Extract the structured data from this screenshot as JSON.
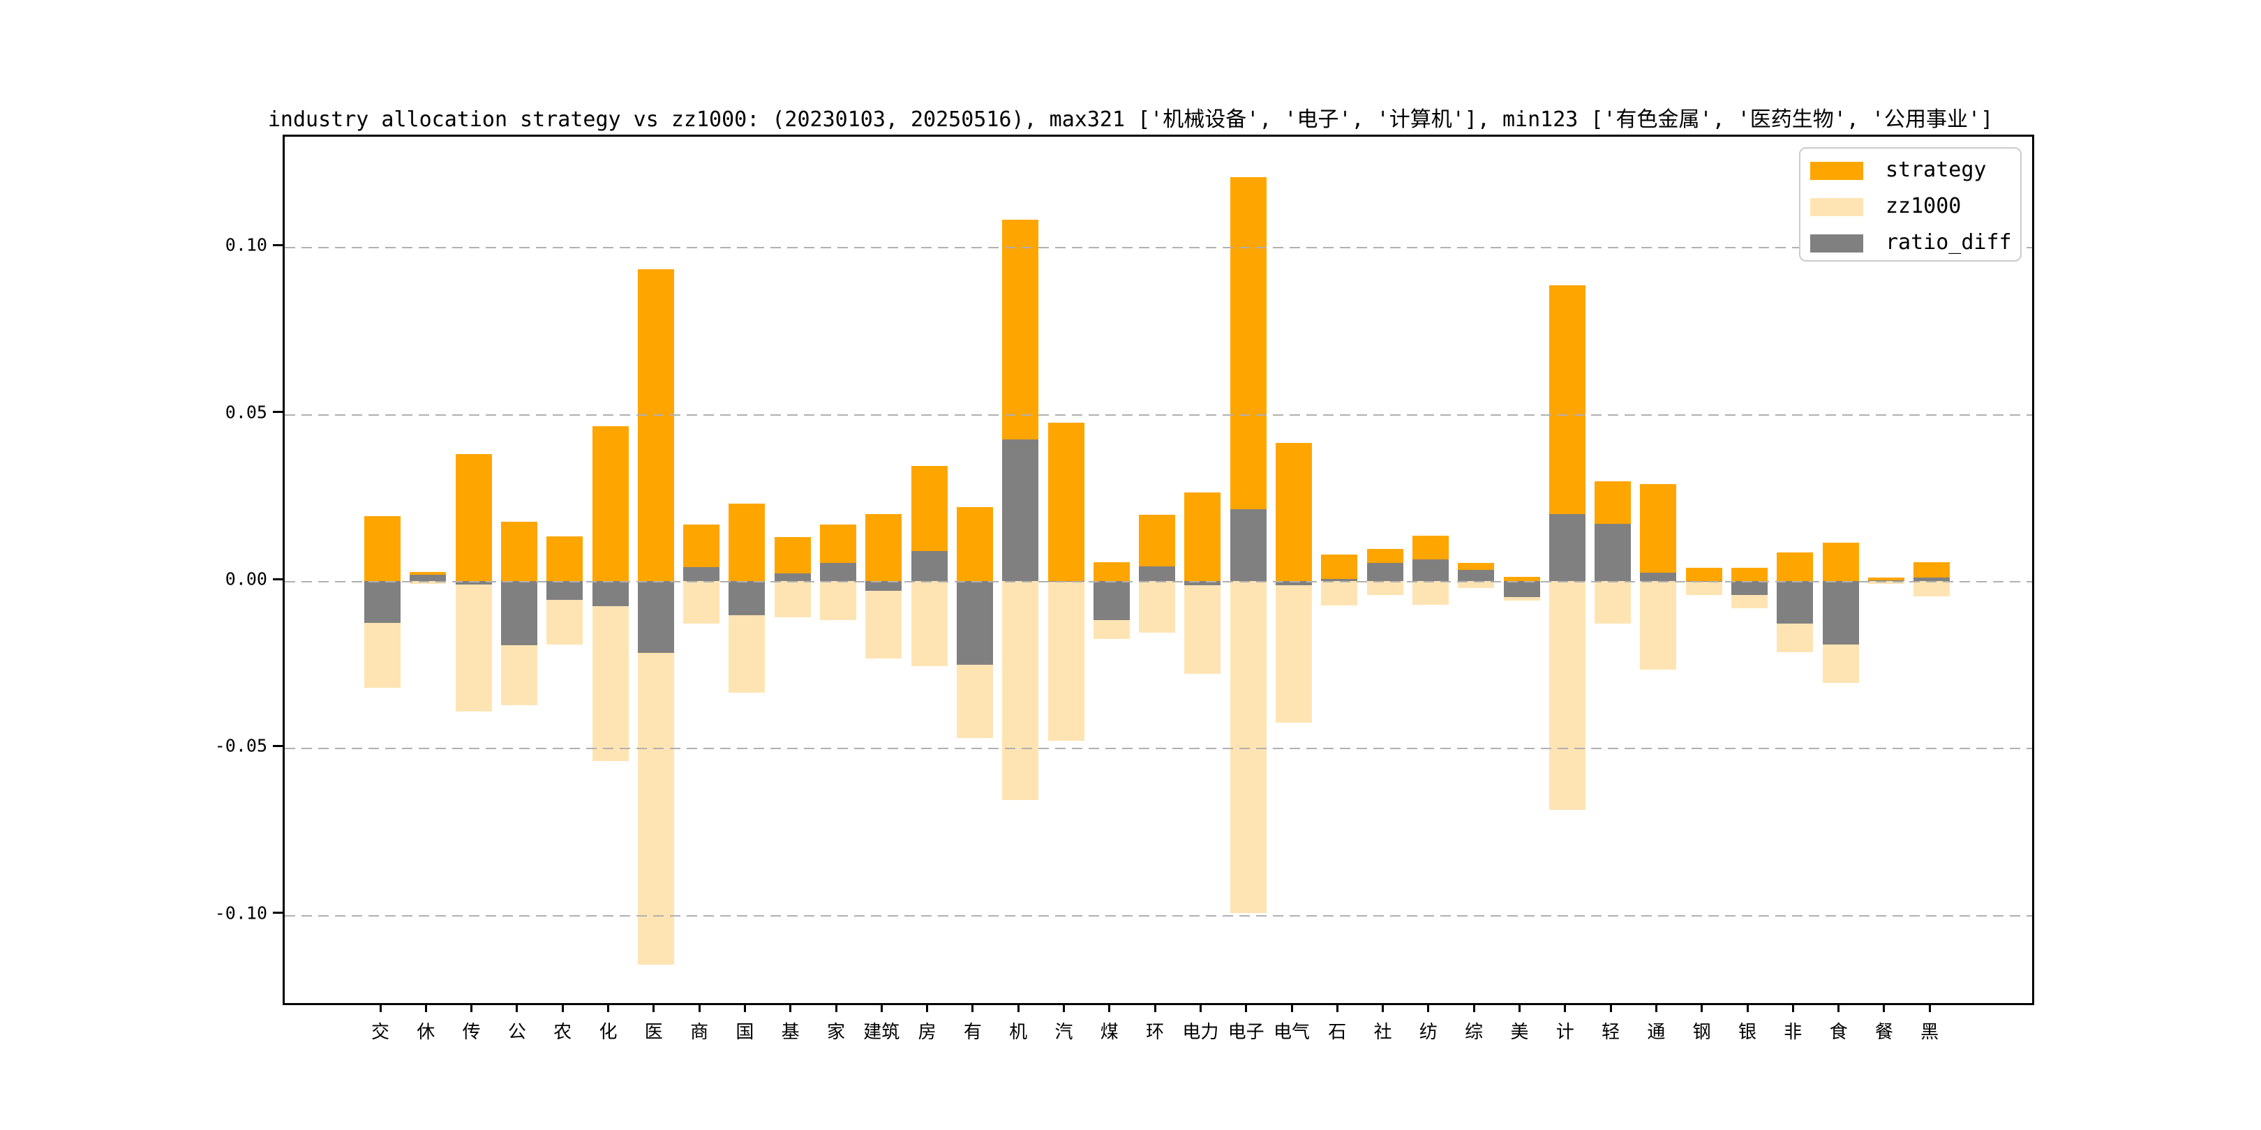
{
  "title": "industry allocation strategy vs zz1000: (20230103, 20250516), max321 ['机械设备', '电子', '计算机'], min123 ['有色金属', '医药生物', '公用事业']",
  "colors": {
    "strategy": "#FFA500",
    "zz1000": "#FFE4B3",
    "ratio_diff": "#808080",
    "grid": "#B0B0B0",
    "spine": "#000000",
    "background": "#FFFFFF"
  },
  "legend": {
    "position": "upper right",
    "entries": [
      {
        "label": "strategy",
        "color_key": "strategy"
      },
      {
        "label": "zz1000",
        "color_key": "zz1000"
      },
      {
        "label": "ratio_diff",
        "color_key": "ratio_diff"
      }
    ]
  },
  "y_axis": {
    "ticks": [
      0.1,
      0.05,
      0.0,
      -0.05,
      -0.1
    ],
    "tick_labels": [
      "0.10",
      "0.05",
      "0.00",
      "-0.05",
      "-0.10"
    ]
  },
  "chart_data": {
    "type": "bar",
    "title": "industry allocation strategy vs zz1000: (20230103, 20250516), max321 ['机械设备', '电子', '计算机'], min123 ['有色金属', '医药生物', '公用事业']",
    "categories": [
      "交",
      "休",
      "传",
      "公",
      "农",
      "化",
      "医",
      "商",
      "国",
      "基",
      "家",
      "建筑",
      "房",
      "有",
      "机",
      "汽",
      "煤",
      "环",
      "电力",
      "电子",
      "电气",
      "石",
      "社",
      "纺",
      "综",
      "美",
      "计",
      "轻",
      "通",
      "钢",
      "银",
      "非",
      "食",
      "餐",
      "黑"
    ],
    "series": [
      {
        "name": "strategy",
        "values": [
          0.0195,
          0.0027,
          0.038,
          0.0178,
          0.0134,
          0.0465,
          0.0935,
          0.017,
          0.0232,
          0.0131,
          0.017,
          0.0201,
          0.0345,
          0.0221,
          0.1082,
          0.0475,
          0.0057,
          0.0198,
          0.0265,
          0.121,
          0.0413,
          0.008,
          0.0097,
          0.0135,
          0.0055,
          0.0012,
          0.0886,
          0.0298,
          0.0291,
          0.004,
          0.004,
          0.0086,
          0.0115,
          0.001,
          0.0056
        ]
      },
      {
        "name": "zz1000",
        "values": [
          -0.032,
          -0.0009,
          -0.039,
          -0.0371,
          -0.019,
          -0.054,
          -0.115,
          -0.0128,
          -0.0335,
          -0.0108,
          -0.0116,
          -0.0231,
          -0.0255,
          -0.0471,
          -0.0657,
          -0.0478,
          -0.0173,
          -0.0155,
          -0.0278,
          -0.0995,
          -0.0425,
          -0.0073,
          -0.0042,
          -0.007,
          -0.0021,
          -0.0059,
          -0.0685,
          -0.0127,
          -0.0266,
          -0.0042,
          -0.0082,
          -0.0214,
          -0.0305,
          -0.0008,
          -0.0046
        ]
      },
      {
        "name": "ratio_diff",
        "values": [
          -0.0125,
          0.0018,
          -0.001,
          -0.0193,
          -0.0056,
          -0.0075,
          -0.0215,
          0.0042,
          -0.0103,
          0.0023,
          0.0054,
          -0.003,
          0.009,
          -0.025,
          0.0425,
          -0.0003,
          -0.0116,
          0.0043,
          -0.0013,
          0.0215,
          -0.0012,
          0.0007,
          0.0055,
          0.0065,
          0.0034,
          -0.0047,
          0.02,
          0.0171,
          0.0025,
          -0.0002,
          -0.0042,
          -0.0128,
          -0.019,
          0.0002,
          0.001
        ]
      }
    ],
    "ylim": [
      -0.128,
      0.133
    ],
    "xlabel": "",
    "ylabel": "",
    "grid": true,
    "legend_position": "upper right"
  }
}
